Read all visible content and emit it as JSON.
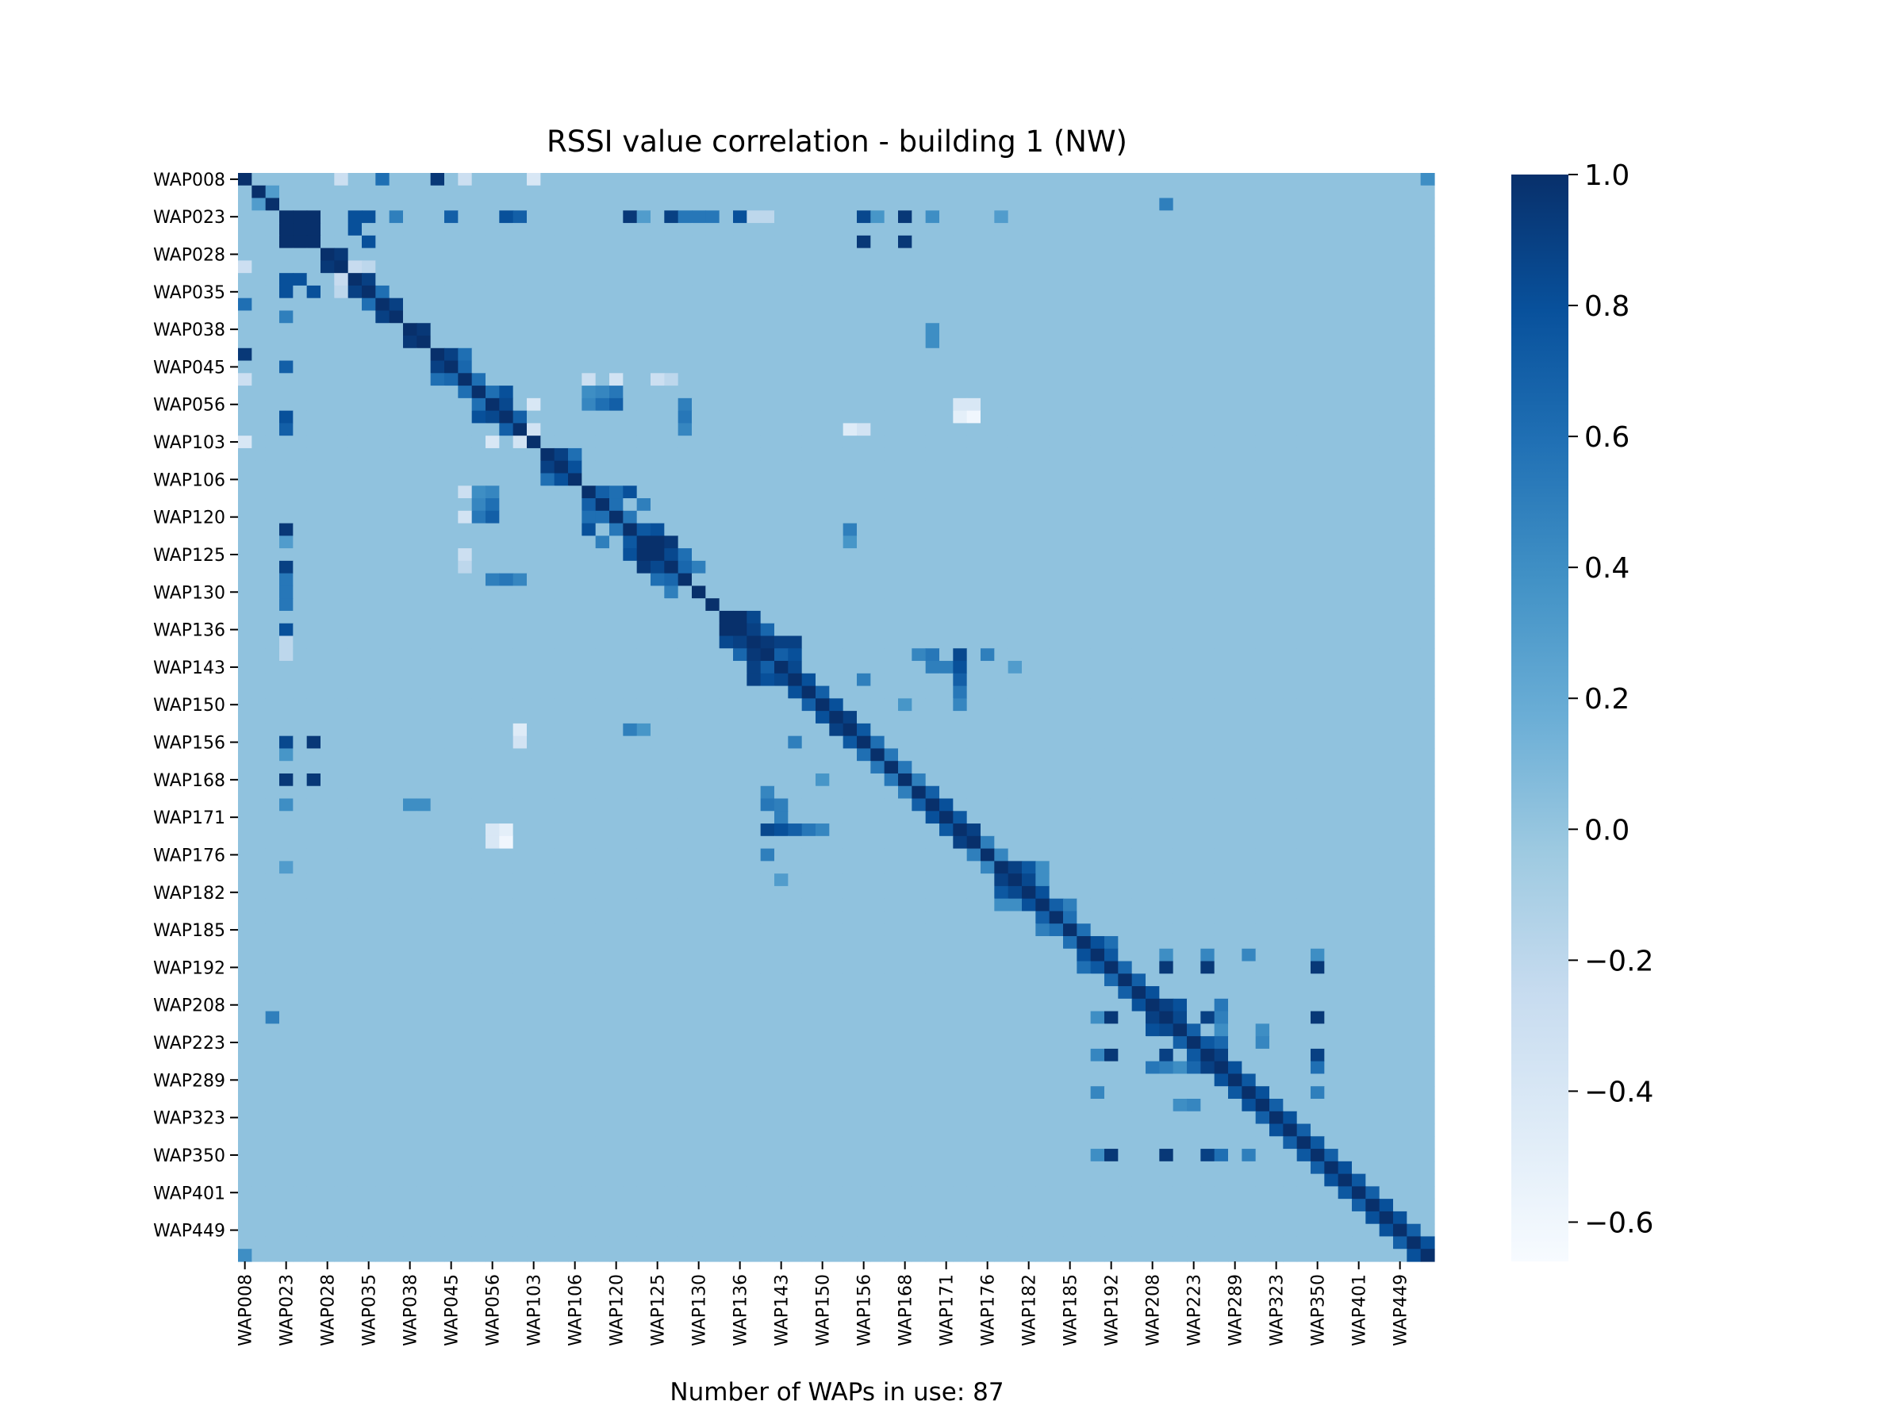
{
  "chart_data": {
    "type": "heatmap",
    "title": "RSSI value correlation - building 1 (NW)",
    "xlabel": "Number of WAPs in use: 87",
    "ylabel": "",
    "n_waps": 87,
    "tick_labels": [
      "WAP008",
      "WAP023",
      "WAP028",
      "WAP035",
      "WAP038",
      "WAP045",
      "WAP056",
      "WAP103",
      "WAP106",
      "WAP120",
      "WAP125",
      "WAP130",
      "WAP136",
      "WAP143",
      "WAP150",
      "WAP156",
      "WAP168",
      "WAP171",
      "WAP176",
      "WAP182",
      "WAP185",
      "WAP192",
      "WAP208",
      "WAP223",
      "WAP289",
      "WAP323",
      "WAP350",
      "WAP401",
      "WAP449"
    ],
    "tick_every": 3,
    "colormap": "Blues",
    "vmin": -0.66,
    "vmax": 1.0,
    "colorbar_ticks": [
      1.0,
      0.8,
      0.6,
      0.4,
      0.2,
      0.0,
      -0.2,
      -0.4,
      -0.6
    ],
    "colorbar_tick_labels": [
      "1.0",
      "0.8",
      "0.6",
      "0.4",
      "0.2",
      "0.0",
      "−0.2",
      "−0.4",
      "−0.6"
    ],
    "background_value": 0.02,
    "diagonal_value": 1.0,
    "correlations": [
      [
        0,
        14,
        0.95
      ],
      [
        0,
        10,
        0.6
      ],
      [
        0,
        7,
        -0.3
      ],
      [
        0,
        16,
        -0.3
      ],
      [
        0,
        21,
        -0.4
      ],
      [
        3,
        4,
        1.0
      ],
      [
        3,
        5,
        1.0
      ],
      [
        3,
        8,
        0.8
      ],
      [
        3,
        9,
        0.8
      ],
      [
        3,
        11,
        0.5
      ],
      [
        3,
        15,
        0.7
      ],
      [
        3,
        19,
        0.8
      ],
      [
        3,
        20,
        0.7
      ],
      [
        3,
        28,
        0.95
      ],
      [
        3,
        29,
        0.3
      ],
      [
        3,
        31,
        0.9
      ],
      [
        3,
        32,
        0.55
      ],
      [
        3,
        33,
        0.55
      ],
      [
        3,
        34,
        0.55
      ],
      [
        3,
        36,
        0.8
      ],
      [
        3,
        37,
        -0.2
      ],
      [
        3,
        38,
        -0.2
      ],
      [
        3,
        45,
        0.85
      ],
      [
        3,
        48,
        0.95
      ],
      [
        3,
        46,
        0.35
      ],
      [
        3,
        50,
        0.4
      ],
      [
        3,
        55,
        0.3
      ],
      [
        4,
        5,
        1.0
      ],
      [
        8,
        9,
        0.9
      ],
      [
        4,
        8,
        0.8
      ],
      [
        5,
        9,
        0.8
      ],
      [
        5,
        45,
        0.95
      ],
      [
        5,
        48,
        0.95
      ],
      [
        6,
        7,
        0.95
      ],
      [
        9,
        10,
        0.6
      ],
      [
        10,
        11,
        0.9
      ],
      [
        12,
        13,
        0.95
      ],
      [
        14,
        15,
        0.9
      ],
      [
        14,
        16,
        0.6
      ],
      [
        15,
        16,
        0.65
      ],
      [
        16,
        17,
        0.6
      ],
      [
        16,
        25,
        -0.3
      ],
      [
        16,
        27,
        -0.35
      ],
      [
        16,
        30,
        -0.3
      ],
      [
        16,
        31,
        -0.2
      ],
      [
        17,
        18,
        0.6
      ],
      [
        17,
        19,
        0.8
      ],
      [
        18,
        19,
        0.85
      ],
      [
        19,
        20,
        0.7
      ],
      [
        17,
        25,
        0.4
      ],
      [
        17,
        26,
        0.45
      ],
      [
        17,
        27,
        0.55
      ],
      [
        18,
        25,
        0.45
      ],
      [
        18,
        26,
        0.6
      ],
      [
        18,
        27,
        0.7
      ],
      [
        18,
        32,
        0.5
      ],
      [
        19,
        32,
        0.55
      ],
      [
        20,
        32,
        0.45
      ],
      [
        18,
        21,
        -0.4
      ],
      [
        18,
        52,
        -0.4
      ],
      [
        18,
        53,
        -0.4
      ],
      [
        19,
        52,
        -0.5
      ],
      [
        19,
        53,
        -0.6
      ],
      [
        20,
        21,
        -0.35
      ],
      [
        20,
        44,
        -0.45
      ],
      [
        20,
        45,
        -0.35
      ],
      [
        22,
        23,
        0.9
      ],
      [
        23,
        24,
        0.8
      ],
      [
        22,
        24,
        0.6
      ],
      [
        25,
        26,
        0.7
      ],
      [
        25,
        27,
        0.6
      ],
      [
        25,
        28,
        0.8
      ],
      [
        26,
        27,
        0.6
      ],
      [
        26,
        29,
        0.5
      ],
      [
        27,
        28,
        0.55
      ],
      [
        28,
        29,
        0.75
      ],
      [
        29,
        30,
        1.0
      ],
      [
        30,
        31,
        0.85
      ],
      [
        31,
        32,
        0.65
      ],
      [
        28,
        30,
        0.8
      ],
      [
        29,
        31,
        0.95
      ],
      [
        30,
        32,
        0.6
      ],
      [
        31,
        33,
        0.5
      ],
      [
        28,
        44,
        0.5
      ],
      [
        29,
        44,
        0.35
      ],
      [
        35,
        36,
        1.0
      ],
      [
        35,
        37,
        0.85
      ],
      [
        36,
        37,
        0.9
      ],
      [
        36,
        38,
        0.65
      ],
      [
        37,
        38,
        0.95
      ],
      [
        37,
        39,
        0.9
      ],
      [
        38,
        39,
        0.7
      ],
      [
        38,
        40,
        0.8
      ],
      [
        37,
        40,
        0.9
      ],
      [
        39,
        40,
        0.85
      ],
      [
        40,
        41,
        0.8
      ],
      [
        41,
        42,
        0.7
      ],
      [
        42,
        43,
        0.8
      ],
      [
        43,
        44,
        0.9
      ],
      [
        44,
        45,
        0.75
      ],
      [
        38,
        52,
        0.85
      ],
      [
        39,
        52,
        0.8
      ],
      [
        40,
        52,
        0.7
      ],
      [
        38,
        54,
        0.5
      ],
      [
        38,
        50,
        0.55
      ],
      [
        38,
        49,
        0.45
      ],
      [
        39,
        50,
        0.5
      ],
      [
        39,
        51,
        0.5
      ],
      [
        41,
        52,
        0.55
      ],
      [
        42,
        52,
        0.45
      ],
      [
        40,
        45,
        0.5
      ],
      [
        45,
        46,
        0.6
      ],
      [
        46,
        47,
        0.55
      ],
      [
        47,
        48,
        0.55
      ],
      [
        48,
        49,
        0.5
      ],
      [
        49,
        50,
        0.7
      ],
      [
        50,
        51,
        0.8
      ],
      [
        51,
        52,
        0.75
      ],
      [
        52,
        53,
        0.9
      ],
      [
        53,
        54,
        0.5
      ],
      [
        54,
        55,
        0.45
      ],
      [
        55,
        56,
        0.9
      ],
      [
        56,
        57,
        0.85
      ],
      [
        57,
        58,
        0.8
      ],
      [
        55,
        57,
        0.75
      ],
      [
        58,
        59,
        0.7
      ],
      [
        59,
        60,
        0.6
      ],
      [
        58,
        60,
        0.5
      ],
      [
        60,
        61,
        0.6
      ],
      [
        61,
        62,
        0.8
      ],
      [
        62,
        63,
        0.75
      ],
      [
        61,
        63,
        0.6
      ],
      [
        63,
        64,
        0.65
      ],
      [
        64,
        65,
        0.7
      ],
      [
        65,
        66,
        0.8
      ],
      [
        66,
        67,
        0.9
      ],
      [
        67,
        68,
        0.85
      ],
      [
        66,
        68,
        0.8
      ],
      [
        68,
        69,
        0.7
      ],
      [
        69,
        70,
        0.75
      ],
      [
        70,
        71,
        0.9
      ],
      [
        69,
        71,
        0.65
      ],
      [
        71,
        72,
        0.8
      ],
      [
        72,
        73,
        0.75
      ],
      [
        73,
        74,
        0.8
      ],
      [
        74,
        75,
        0.7
      ],
      [
        75,
        76,
        0.8
      ],
      [
        76,
        77,
        0.7
      ],
      [
        77,
        78,
        0.75
      ],
      [
        78,
        79,
        0.7
      ],
      [
        79,
        80,
        0.8
      ],
      [
        80,
        81,
        0.75
      ],
      [
        81,
        82,
        0.7
      ],
      [
        82,
        83,
        0.8
      ],
      [
        83,
        84,
        0.8
      ],
      [
        84,
        85,
        0.7
      ],
      [
        85,
        86,
        0.8
      ],
      [
        62,
        67,
        0.4
      ],
      [
        62,
        70,
        0.45
      ],
      [
        62,
        73,
        0.45
      ],
      [
        62,
        78,
        0.4
      ],
      [
        66,
        71,
        0.55
      ],
      [
        67,
        71,
        0.5
      ],
      [
        71,
        78,
        0.6
      ],
      [
        73,
        78,
        0.5
      ],
      [
        63,
        67,
        0.95
      ],
      [
        63,
        70,
        0.95
      ],
      [
        63,
        78,
        0.95
      ],
      [
        67,
        70,
        0.9
      ],
      [
        67,
        78,
        0.95
      ],
      [
        70,
        78,
        0.9
      ],
      [
        68,
        71,
        0.4
      ],
      [
        68,
        74,
        0.4
      ],
      [
        69,
        74,
        0.45
      ],
      [
        0,
        86,
        0.4
      ],
      [
        2,
        67,
        0.5
      ],
      [
        1,
        2,
        0.3
      ],
      [
        7,
        8,
        -0.25
      ],
      [
        7,
        9,
        -0.2
      ],
      [
        12,
        50,
        0.4
      ],
      [
        13,
        50,
        0.4
      ],
      [
        42,
        48,
        0.35
      ],
      [
        39,
        56,
        0.3
      ],
      [
        55,
        58,
        0.4
      ],
      [
        56,
        58,
        0.4
      ]
    ]
  }
}
